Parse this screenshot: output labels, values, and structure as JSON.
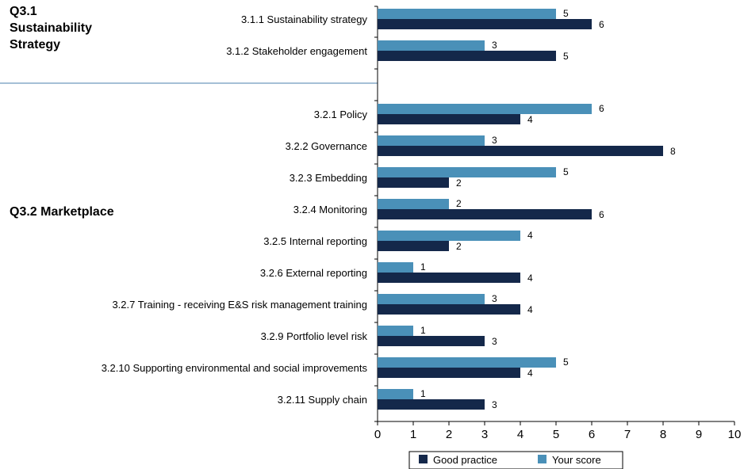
{
  "chart_data": {
    "type": "bar",
    "orientation": "horizontal",
    "groups": [
      {
        "label_lines": [
          "Q3.1",
          "Sustainability",
          "Strategy"
        ],
        "categories": [
          "3.1.1 Sustainability strategy",
          "3.1.2 Stakeholder engagement"
        ]
      },
      {
        "label_lines": [
          "Q3.2 Marketplace"
        ],
        "categories": [
          "3.2.1 Policy",
          "3.2.2 Governance",
          "3.2.3 Embedding",
          "3.2.4 Monitoring",
          "3.2.5 Internal reporting",
          "3.2.6 External reporting",
          "3.2.7 Training - receiving E&S risk management training",
          "3.2.9 Portfolio level risk",
          "3.2.10 Supporting environmental and social improvements",
          "3.2.11 Supply chain"
        ]
      }
    ],
    "series": [
      {
        "name": "Your score",
        "color": "#4a90b8",
        "values": [
          5,
          3,
          6,
          3,
          5,
          2,
          4,
          1,
          3,
          1,
          5,
          1
        ]
      },
      {
        "name": "Good practice",
        "color": "#14284a",
        "values": [
          6,
          5,
          4,
          8,
          2,
          6,
          2,
          4,
          4,
          3,
          4,
          3
        ]
      }
    ],
    "xlim": [
      0,
      10
    ],
    "xticks": [
      0,
      1,
      2,
      3,
      4,
      5,
      6,
      7,
      8,
      9,
      10
    ],
    "legend": {
      "position": "bottom",
      "order": [
        "Good practice",
        "Your score"
      ]
    },
    "grid": false
  }
}
